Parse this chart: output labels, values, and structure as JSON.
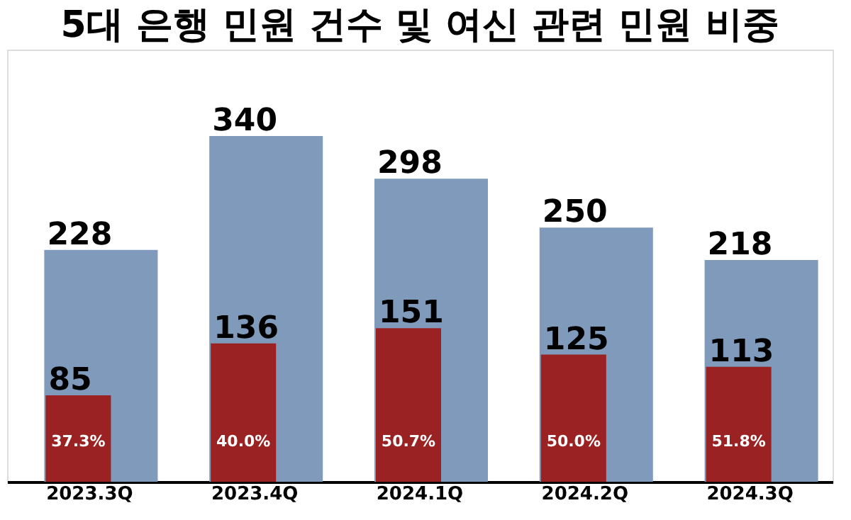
{
  "chart_data": {
    "type": "bar",
    "title": "5대 은행 민원 건수 및 여신 관련 민원 비중",
    "categories": [
      "2023.3Q",
      "2023.4Q",
      "2024.1Q",
      "2024.2Q",
      "2024.3Q"
    ],
    "series": [
      {
        "color": "#7f9aba",
        "values": [
          228,
          340,
          298,
          250,
          218
        ]
      },
      {
        "color": "#9b2222",
        "values": [
          85,
          136,
          151,
          125,
          113
        ]
      }
    ],
    "data_labels": true,
    "annotations": [
      "37.3%",
      "40.0%",
      "50.7%",
      "50.0%",
      "51.8%"
    ]
  }
}
